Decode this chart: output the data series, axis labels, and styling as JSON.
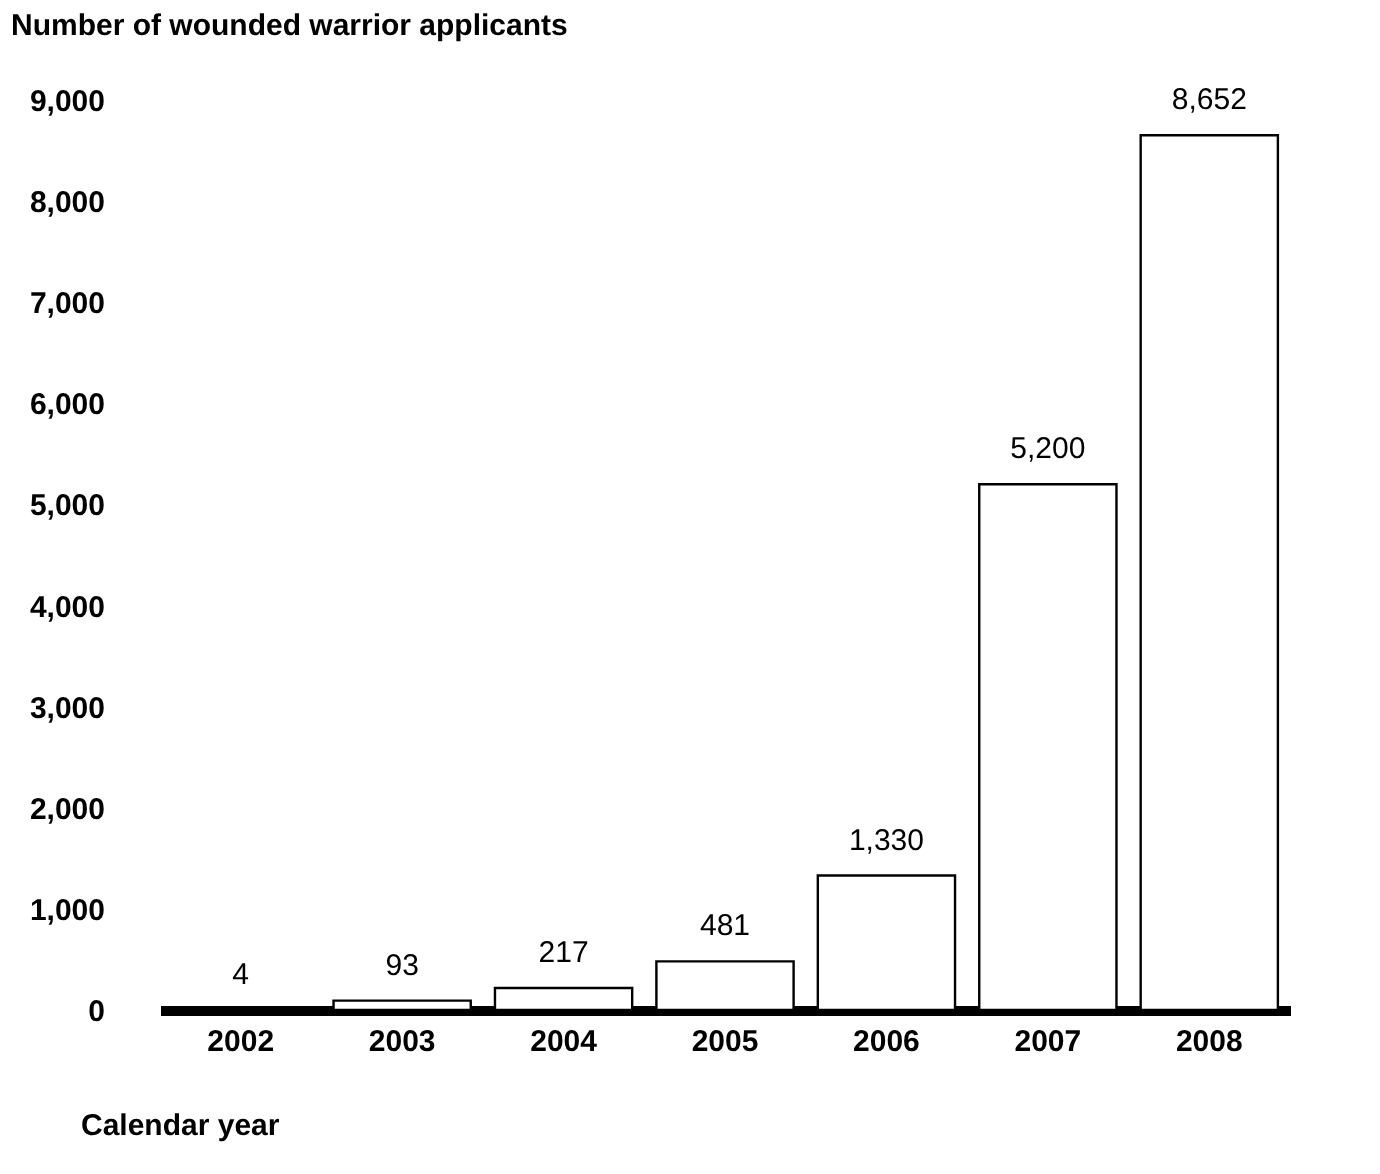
{
  "chart_data": {
    "type": "bar",
    "ylabel": "Number of wounded warrior applicants",
    "xlabel": "Calendar year",
    "categories": [
      "2002",
      "2003",
      "2004",
      "2005",
      "2006",
      "2007",
      "2008"
    ],
    "values": [
      4,
      93,
      217,
      481,
      1330,
      5200,
      8652
    ],
    "value_labels": [
      "4",
      "93",
      "217",
      "481",
      "1,330",
      "5,200",
      "8,652"
    ],
    "color": "#ffffff",
    "ylim": [
      0,
      9000
    ],
    "yticks": [
      {
        "value": 0,
        "label": "0"
      },
      {
        "value": 1000,
        "label": "1,000"
      },
      {
        "value": 2000,
        "label": "2,000"
      },
      {
        "value": 3000,
        "label": "3,000"
      },
      {
        "value": 4000,
        "label": "4,000"
      },
      {
        "value": 5000,
        "label": "5,000"
      },
      {
        "value": 6000,
        "label": "6,000"
      },
      {
        "value": 7000,
        "label": "7,000"
      },
      {
        "value": 8000,
        "label": "8,000"
      },
      {
        "value": 9000,
        "label": "9,000"
      }
    ],
    "grid": false
  }
}
